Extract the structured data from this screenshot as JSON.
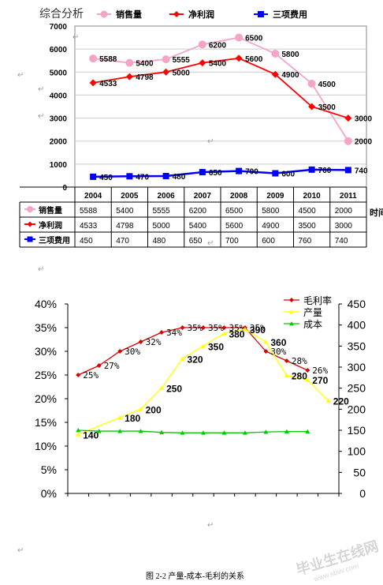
{
  "chart_data": [
    {
      "type": "line",
      "title": "综合分析",
      "xlabel": "时间",
      "ylim": [
        0,
        7000
      ],
      "yticks": [
        0,
        1000,
        2000,
        3000,
        4000,
        5000,
        6000,
        7000
      ],
      "categories": [
        "2004",
        "2005",
        "2006",
        "2007",
        "2008",
        "2009",
        "2010",
        "2011"
      ],
      "series": [
        {
          "name": "销售量",
          "color": "#f5a3c7",
          "marker": "circle",
          "values": [
            5588,
            5400,
            5555,
            6200,
            6500,
            5800,
            4500,
            2000
          ]
        },
        {
          "name": "净利润",
          "color": "#ff0000",
          "marker": "diamond",
          "values": [
            4533,
            4798,
            5000,
            5400,
            5600,
            4900,
            3500,
            3000
          ]
        },
        {
          "name": "三项费用",
          "color": "#0000ff",
          "marker": "square",
          "values": [
            450,
            470,
            480,
            650,
            700,
            600,
            760,
            740
          ]
        }
      ],
      "grid": true,
      "legend": "top",
      "has_data_table": true
    },
    {
      "type": "line",
      "title": "",
      "caption": "图 2-2  产量-成本-毛利的关系",
      "y_left": {
        "ticks": [
          "0%",
          "5%",
          "10%",
          "15%",
          "20%",
          "25%",
          "30%",
          "35%",
          "40%"
        ],
        "lim": [
          0,
          40
        ]
      },
      "y_right": {
        "ticks": [
          "0",
          "50",
          "100",
          "150",
          "200",
          "250",
          "300",
          "350",
          "400",
          "450"
        ],
        "lim": [
          0,
          450
        ]
      },
      "n_points": 13,
      "series": [
        {
          "name": "毛利率",
          "axis": "left",
          "color": "#dd0000",
          "marker": "diamond",
          "values": [
            25,
            27,
            30,
            32,
            34,
            35,
            35,
            35,
            35,
            30,
            28,
            26
          ],
          "x": [
            0,
            1,
            2,
            3,
            4,
            5,
            6,
            7,
            8,
            9,
            10,
            11
          ],
          "labels": [
            "25%",
            "27%",
            "30%",
            "32%",
            "34%",
            "35%",
            "35%",
            "35%",
            "35%",
            "30%",
            "28%",
            "26%"
          ]
        },
        {
          "name": "产量",
          "axis": "right",
          "color": "#ffff00",
          "marker": "triangle",
          "values": [
            140,
            180,
            200,
            250,
            320,
            350,
            380,
            390,
            360,
            280,
            270,
            220
          ],
          "x": [
            0,
            2,
            3,
            4,
            5,
            6,
            7,
            8,
            9,
            10,
            11,
            12
          ],
          "labels": [
            "140",
            "180",
            "200",
            "250",
            "320",
            "350",
            "380",
            "390",
            "360",
            "280",
            "270",
            "220"
          ]
        },
        {
          "name": "成本",
          "axis": "right",
          "color": "#00cc00",
          "marker": "triangle",
          "values": [
            150,
            148,
            148,
            148,
            145,
            144,
            144,
            144,
            144,
            146,
            147,
            147
          ],
          "x": [
            0,
            1,
            2,
            3,
            4,
            5,
            6,
            7,
            8,
            9,
            10,
            11
          ]
        }
      ],
      "legend": "top-right",
      "grid": false
    }
  ],
  "watermark": {
    "text": "毕业生在线网",
    "sub": "www.sbvv.com"
  }
}
